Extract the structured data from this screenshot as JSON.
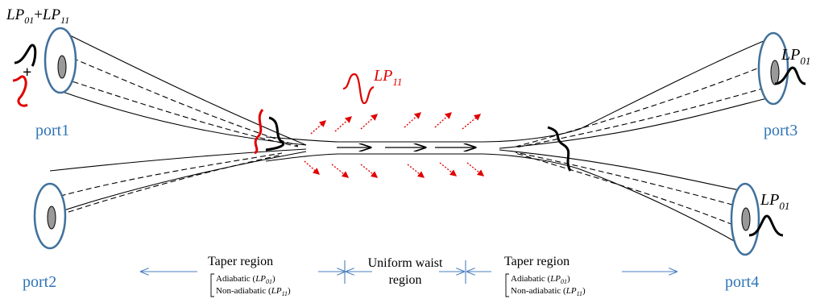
{
  "labels": {
    "input_modes": {
      "a": "LP",
      "a_sub": "01",
      "plus": "+",
      "b": "LP",
      "b_sub": "11"
    },
    "lp11_leak": {
      "main": "LP",
      "sub": "11"
    },
    "port3_mode": {
      "main": "LP",
      "sub": "01"
    },
    "port4_mode": {
      "main": "LP",
      "sub": "01"
    },
    "plus_sign": "+",
    "ports": {
      "port1": "port1",
      "port2": "port2",
      "port3": "port3",
      "port4": "port4"
    }
  },
  "regions": {
    "left_taper": {
      "title": "Taper region",
      "line1_prefix": "Adiabatic (",
      "line1_mode": "LP",
      "line1_sub": "01",
      "line1_suffix": ")",
      "line2_prefix": "Non-adiabatic (",
      "line2_mode": "LP",
      "line2_sub": "11",
      "line2_suffix": ")"
    },
    "waist": {
      "line1": "Uniform waist",
      "line2": "region"
    },
    "right_taper": {
      "title": "Taper region",
      "line1_prefix": "Adiabatic (",
      "line1_mode": "LP",
      "line1_sub": "01",
      "line1_suffix": ")",
      "line2_prefix": "Non-adiabatic (",
      "line2_mode": "LP",
      "line2_sub": "11",
      "line2_suffix": ")"
    }
  },
  "colors": {
    "port_label": "#2e74b5",
    "port_ring": "#41719c",
    "leak_arrows": "#e00000",
    "lp11_wave": "#e00000",
    "lp01_wave": "#000000",
    "region_arrows": "#4a7fc0"
  }
}
